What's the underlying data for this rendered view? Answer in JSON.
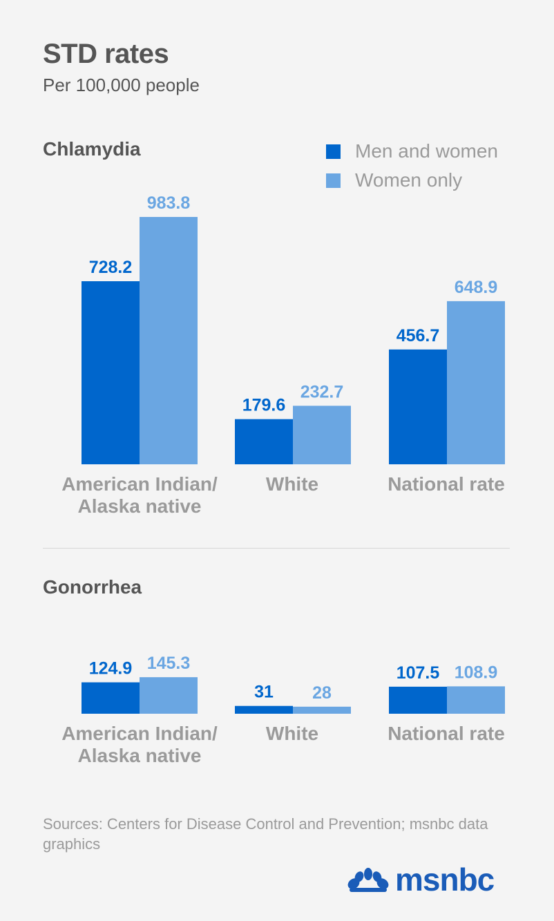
{
  "title": "STD rates",
  "subtitle": "Per 100,000 people",
  "colors": {
    "men_and_women": "#0066cc",
    "women_only": "#6aa6e2",
    "category_label": "#9a9a9a"
  },
  "legend": [
    {
      "label": "Men and women",
      "color": "#0066cc"
    },
    {
      "label": "Women only",
      "color": "#6aa6e2"
    }
  ],
  "chart_data": [
    {
      "type": "bar",
      "title": "Chlamydia",
      "categories": [
        "American Indian/\nAlaska native",
        "White",
        "National rate"
      ],
      "series": [
        {
          "name": "Men and women",
          "values": [
            728.2,
            179.6,
            456.7
          ],
          "labels": [
            "728.2",
            "179.6",
            "456.7"
          ]
        },
        {
          "name": "Women only",
          "values": [
            983.8,
            232.7,
            648.9
          ],
          "labels": [
            "983.8",
            "232.7",
            "648.9"
          ]
        }
      ],
      "ylim": [
        0,
        983.8
      ],
      "grid": false
    },
    {
      "type": "bar",
      "title": "Gonorrhea",
      "categories": [
        "American Indian/\nAlaska native",
        "White",
        "National rate"
      ],
      "series": [
        {
          "name": "Men and women",
          "values": [
            124.9,
            31,
            107.5
          ],
          "labels": [
            "124.9",
            "31",
            "107.5"
          ]
        },
        {
          "name": "Women only",
          "values": [
            145.3,
            28,
            108.9
          ],
          "labels": [
            "145.3",
            "28",
            "108.9"
          ]
        }
      ],
      "ylim": [
        0,
        983.8
      ],
      "grid": false
    }
  ],
  "sources": "Sources: Centers for Disease Control and Prevention; msnbc data graphics",
  "logo": {
    "text": "msnbc",
    "icon": "peacock-icon"
  }
}
